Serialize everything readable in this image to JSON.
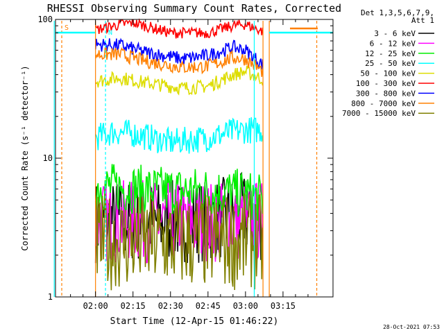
{
  "chart_data": {
    "type": "line",
    "title": "RHESSI Observing Summary Count Rates, Corrected",
    "xlabel": "Start Time (12-Apr-15 01:46:22)",
    "ylabel": "Corrected Count Rate (s⁻¹ detector⁻¹)",
    "yscale": "log",
    "ylim": [
      1,
      100
    ],
    "xlim_minutes_after_0200": [
      -16,
      95
    ],
    "x_ticks": [
      "02:00",
      "02:15",
      "02:30",
      "02:45",
      "03:00",
      "03:15"
    ],
    "y_ticks": [
      "1",
      "10",
      "100"
    ],
    "legend_header": [
      "Det 1,3,5,6,7,9,",
      "Att 1"
    ],
    "legend_placement": "right",
    "series": [
      {
        "name": "3 - 6 keV",
        "color": "#000000",
        "x": [
          "02:00",
          "02:15",
          "02:30",
          "02:45",
          "03:00",
          "03:07"
        ],
        "y": [
          3.5,
          3.5,
          3.5,
          3.5,
          4.0,
          3.5
        ]
      },
      {
        "name": "6 - 12 keV",
        "color": "#ff00ff",
        "x": [
          "02:00",
          "02:15",
          "02:30",
          "02:45",
          "03:00",
          "03:07"
        ],
        "y": [
          3.5,
          3.5,
          3.5,
          3.5,
          3.5,
          3.5
        ]
      },
      {
        "name": "12 - 25 keV",
        "color": "#00ee00",
        "x": [
          "02:00",
          "02:15",
          "02:30",
          "02:45",
          "03:00",
          "03:07"
        ],
        "y": [
          6.3,
          6.0,
          5.8,
          5.8,
          5.5,
          5.0
        ]
      },
      {
        "name": "25 - 50 keV",
        "color": "#00ffff",
        "x": [
          "02:00",
          "02:07",
          "02:15",
          "02:30",
          "02:45",
          "02:55",
          "03:00",
          "03:07"
        ],
        "y": [
          14,
          15.5,
          15,
          13,
          14,
          15.5,
          16,
          16
        ]
      },
      {
        "name": "50 - 100 keV",
        "color": "#dddd00",
        "x": [
          "02:00",
          "02:10",
          "02:20",
          "02:35",
          "02:45",
          "02:55",
          "03:00",
          "03:07"
        ],
        "y": [
          36,
          38,
          35,
          32,
          33,
          40,
          42,
          37
        ]
      },
      {
        "name": "100 - 300 keV",
        "color": "#ff0000",
        "x": [
          "02:00",
          "02:10",
          "02:15",
          "02:30",
          "02:45",
          "02:55",
          "03:00",
          "03:07"
        ],
        "y": [
          84,
          92,
          95,
          80,
          80,
          90,
          92,
          82
        ]
      },
      {
        "name": "300 - 800 keV",
        "color": "#0000ff",
        "x": [
          "02:00",
          "02:10",
          "02:20",
          "02:35",
          "02:45",
          "02:55",
          "03:00",
          "03:07"
        ],
        "y": [
          66,
          65,
          58,
          52,
          55,
          63,
          60,
          47
        ]
      },
      {
        "name": "800 - 7000 keV",
        "color": "#ff8000",
        "x": [
          "02:00",
          "02:10",
          "02:20",
          "02:35",
          "02:45",
          "02:55",
          "03:00",
          "03:07"
        ],
        "y": [
          56,
          56,
          50,
          45,
          46,
          53,
          52,
          42
        ]
      },
      {
        "name": "7000 - 15000 keV",
        "color": "#808000",
        "x": [
          "02:00",
          "02:15",
          "02:30",
          "02:45",
          "03:00",
          "03:07"
        ],
        "y": [
          2.5,
          2.5,
          2.5,
          2.5,
          2.5,
          2.5
        ]
      }
    ],
    "annotations": [
      {
        "text": "S",
        "color": "#ff8000"
      },
      {
        "text": "N",
        "color": "#00ffff"
      }
    ]
  },
  "footer": "28-Oct-2021 07:53"
}
